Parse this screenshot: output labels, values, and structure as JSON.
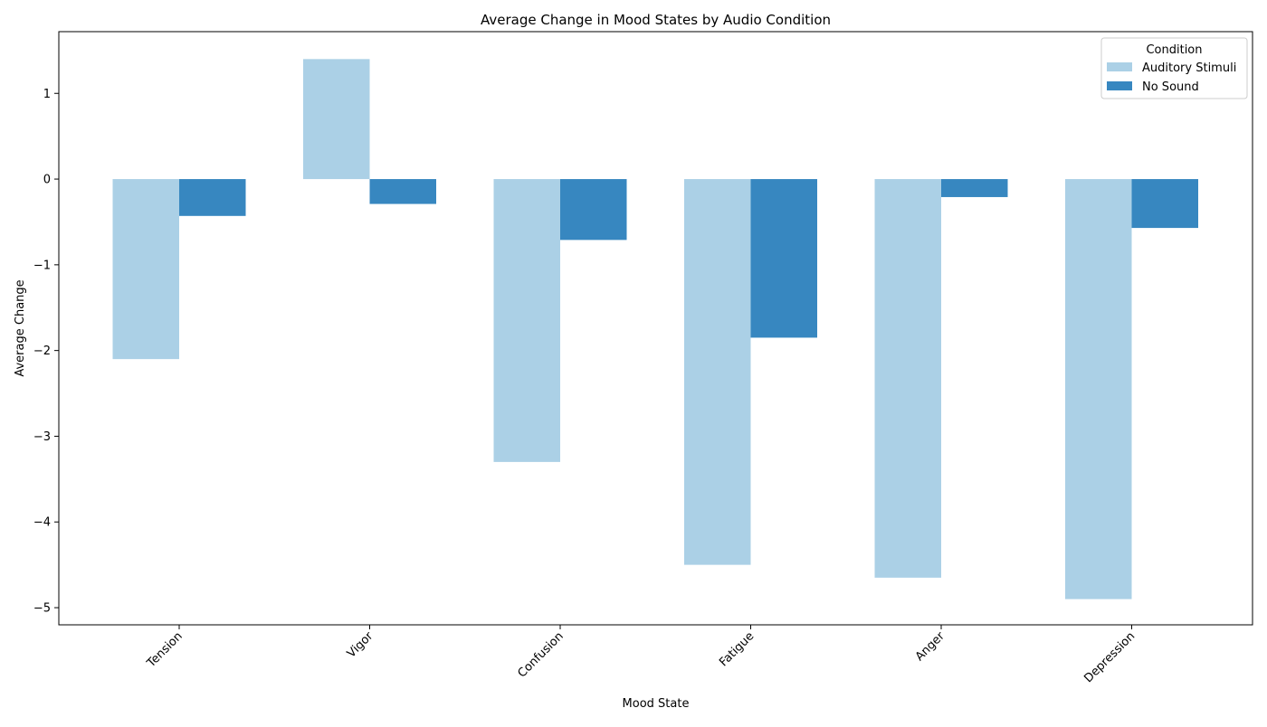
{
  "chart_data": {
    "type": "bar",
    "title": "Average Change in Mood States by Audio Condition",
    "xlabel": "Mood State",
    "ylabel": "Average Change",
    "categories": [
      "Tension",
      "Vigor",
      "Confusion",
      "Fatigue",
      "Anger",
      "Depression"
    ],
    "series": [
      {
        "name": "Auditory Stimuli",
        "color": "#abd0e6",
        "values": [
          -2.1,
          1.4,
          -3.3,
          -4.5,
          -4.65,
          -4.9
        ]
      },
      {
        "name": "No Sound",
        "color": "#3787c0",
        "values": [
          -0.43,
          -0.29,
          -0.71,
          -1.85,
          -0.21,
          -0.57
        ]
      }
    ],
    "ylim": [
      -5.2,
      1.72
    ],
    "yticks": [
      1,
      0,
      -1,
      -2,
      -3,
      -4,
      -5
    ],
    "ytick_labels": [
      "1",
      "0",
      "−1",
      "−2",
      "−3",
      "−4",
      "−5"
    ],
    "grid": false,
    "legend": {
      "title": "Condition",
      "placement": "top-right"
    }
  }
}
